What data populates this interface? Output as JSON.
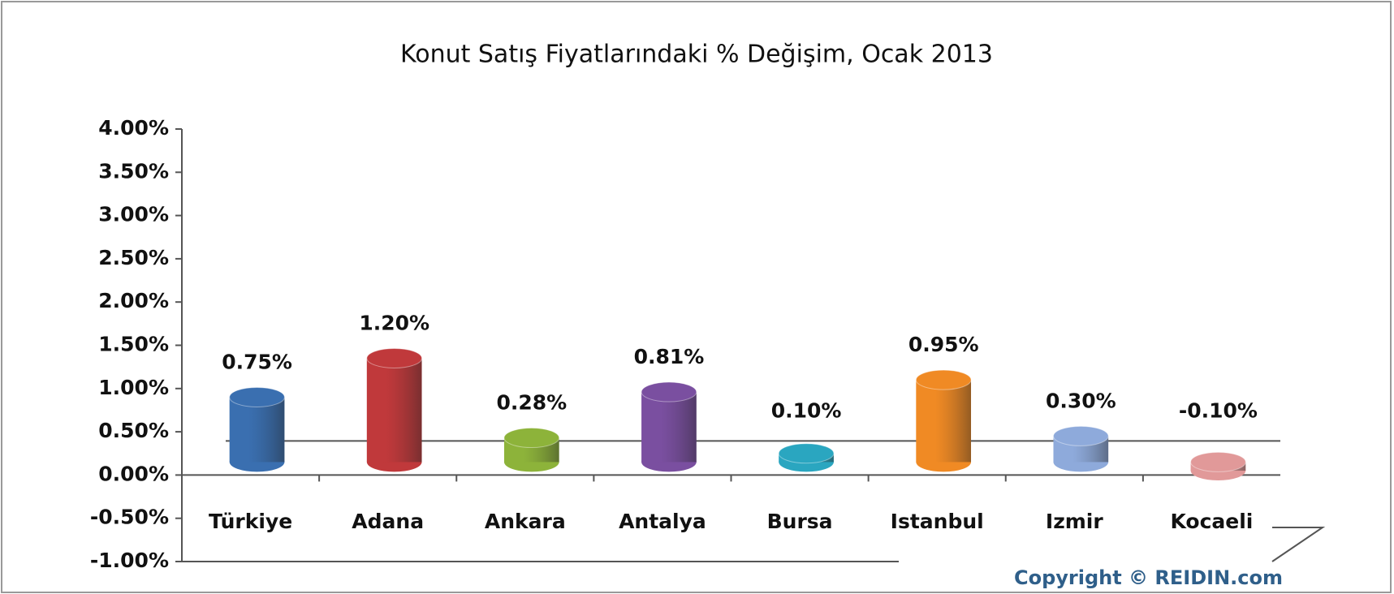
{
  "chart_data": {
    "type": "bar",
    "title": "Konut Satış Fiyatlarındaki % Değişim, Ocak 2013",
    "categories": [
      "Türkiye",
      "Adana",
      "Ankara",
      "Antalya",
      "Bursa",
      "Istanbul",
      "Izmir",
      "Kocaeli"
    ],
    "values": [
      0.75,
      1.2,
      0.28,
      0.81,
      0.1,
      0.95,
      0.3,
      -0.1
    ],
    "value_labels": [
      "0.75%",
      "1.20%",
      "0.28%",
      "0.81%",
      "0.10%",
      "0.95%",
      "0.30%",
      "-0.10%"
    ],
    "colors": [
      "#3a6fb0",
      "#c0393b",
      "#8db33a",
      "#7a4fa0",
      "#2aa6c0",
      "#f08a24",
      "#8eaadb",
      "#e19999"
    ],
    "ylim": [
      -1,
      4
    ],
    "yticks": [
      {
        "value": -1,
        "label": "-1.00%"
      },
      {
        "value": -0.5,
        "label": "-0.50%"
      },
      {
        "value": 0,
        "label": "0.00%"
      },
      {
        "value": 0.5,
        "label": "0.50%"
      },
      {
        "value": 1,
        "label": "1.00%"
      },
      {
        "value": 1.5,
        "label": "1.50%"
      },
      {
        "value": 2,
        "label": "2.00%"
      },
      {
        "value": 2.5,
        "label": "2.50%"
      },
      {
        "value": 3,
        "label": "3.00%"
      },
      {
        "value": 3.5,
        "label": "3.50%"
      },
      {
        "value": 4,
        "label": "4.00%"
      }
    ],
    "source": "Copyright © REIDIN.com"
  }
}
